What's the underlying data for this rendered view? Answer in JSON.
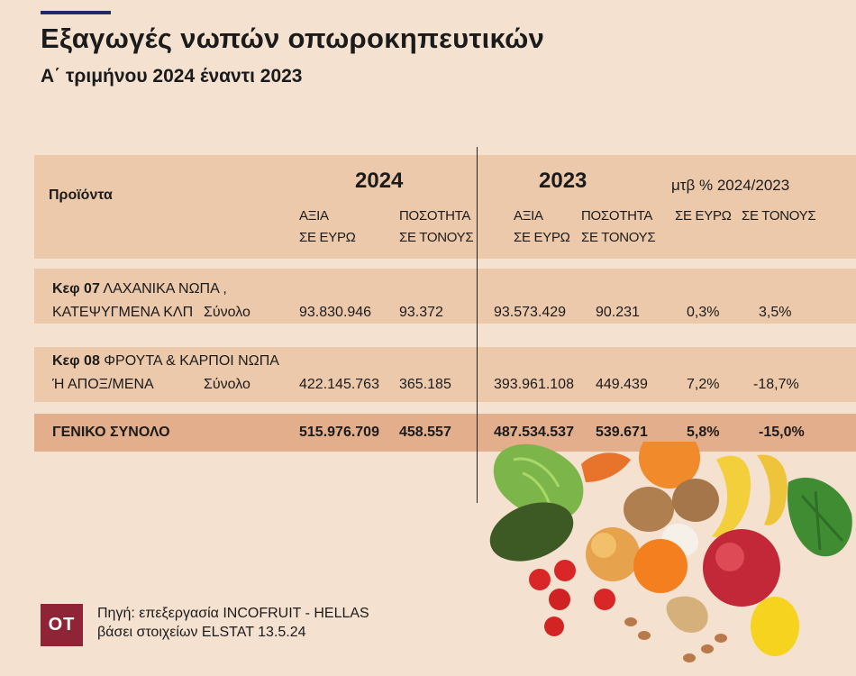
{
  "title": "Εξαγωγές  νωπών οπωροκηπευτικών",
  "subtitle": "Α΄ τριμήνου 2024 έναντι 2023",
  "header": {
    "products": "Προϊόντα",
    "year_2024": "2024",
    "year_2023": "2023",
    "change": "μτβ % 2024/2023",
    "value_1": "ΑΞΙΑ",
    "value_2": "ΣΕ ΕΥΡΩ",
    "qty_1": "ΠΟΣΟΤΗΤΑ",
    "qty_2": "ΣΕ ΤΟΝΟΥΣ",
    "chg_value": "ΣΕ ΕΥΡΩ",
    "chg_qty": "ΣΕ ΤΟΝΟΥΣ"
  },
  "rows": [
    {
      "code": "Κεφ 07",
      "line1": " ΛΑΧΑΝΙΚΑ ΝΩΠΑ ,",
      "line2": "ΚΑΤΕΨΥΓΜΕΝΑ ΚΛΠ",
      "total_label": "Σύνολο",
      "v2024": "93.830.946",
      "q2024": "93.372",
      "v2023": "93.573.429",
      "q2023": "90.231",
      "chg_v": "0,3%",
      "chg_q": "3,5%"
    },
    {
      "code": "Κεφ 08",
      "line1": " ΦΡΟΥΤΑ & ΚΑΡΠΟΙ ΝΩΠΑ",
      "line2": "Ή ΑΠΟΞ/ΜΕΝΑ",
      "total_label": "Σύνολο",
      "v2024": "422.145.763",
      "q2024": "365.185",
      "v2023": "393.961.108",
      "q2023": "449.439",
      "chg_v": "7,2%",
      "chg_q": "-18,7%"
    }
  ],
  "grand_total": {
    "label": "ΓΕΝΙΚΟ  ΣΥΝΟΛΟ",
    "v2024": "515.976.709",
    "q2024": "458.557",
    "v2023": "487.534.537",
    "q2023": "539.671",
    "chg_v": "5,8%",
    "chg_q": "-15,0%"
  },
  "logo": "ΟΤ",
  "source_1": "Πηγή: επεξεργασία INCOFRUIT - HELLAS",
  "source_2": "βάσει στοιχείων ELSTAT 13.5.24",
  "colors": {
    "background": "#f4e1d0",
    "band": "#edc9ab",
    "total_band": "#e3ae8b",
    "logo": "#8e2435",
    "accent_line": "#1f2a6b"
  },
  "decoration": "fresh-produce-illustration"
}
